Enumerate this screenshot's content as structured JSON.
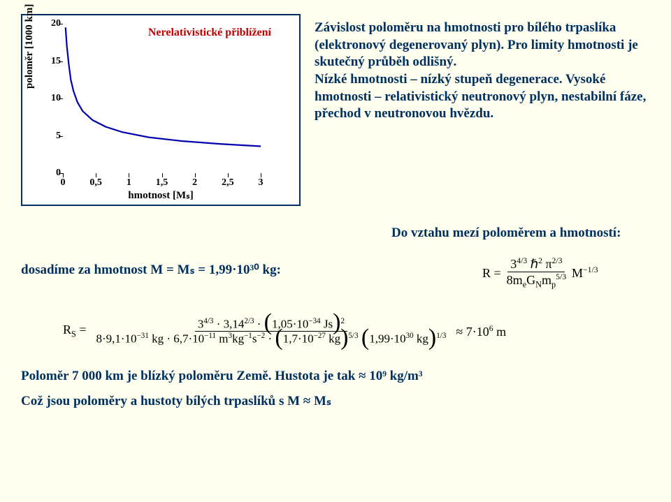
{
  "chart": {
    "type": "line",
    "legend_label": "Nerelativistické přiblížení",
    "legend_color": "#c00000",
    "line_color": "#0000b0",
    "line_width": 2.2,
    "background_color": "#ffffff",
    "border_color": "#003060",
    "xlabel": "hmotnost [Mₛ]",
    "ylabel": "poloměr [1000 km]",
    "tick_color": "#000000",
    "tick_fontsize": 14,
    "label_fontsize": 15,
    "xlim": [
      0,
      3
    ],
    "ylim": [
      0,
      20
    ],
    "xticks": [
      0,
      0.5,
      1,
      1.5,
      2,
      2.5,
      3
    ],
    "xtick_labels": [
      "0",
      "0,5",
      "1",
      "1,5",
      "2",
      "2,5",
      "3"
    ],
    "yticks": [
      0,
      5,
      10,
      15,
      20
    ],
    "ytick_labels": [
      "0",
      "5",
      "10",
      "15",
      "20"
    ],
    "x": [
      0.04,
      0.06,
      0.09,
      0.12,
      0.16,
      0.22,
      0.3,
      0.45,
      0.65,
      0.9,
      1.3,
      1.8,
      2.4,
      3.0
    ],
    "y": [
      19.5,
      17.0,
      14.5,
      12.5,
      11.0,
      9.5,
      8.3,
      7.1,
      6.2,
      5.5,
      4.8,
      4.3,
      3.9,
      3.6
    ]
  },
  "text": {
    "explain_1": "Závislost poloměru na hmotnosti pro bílého trpaslíka (elektronový degenerovaný plyn). Pro limity hmotnosti je skutečný průběh odlišný.",
    "explain_2": "Nízké hmotnosti – nízký stupeň degenerace. Vysoké hmotnosti – relativistický neutronový plyn, nestabilní fáze, přechod v neutronovou hvězdu.",
    "mid_right": "Do vztahu mezí poloměrem a hmotností:",
    "mid_left": "dosadíme za hmotnost M = Mₛ = 1,99·10³⁰ kg:",
    "bottom_1": "Poloměr 7 000 km je blízký poloměru Země. Hustota je tak ≈ 10⁹ kg/m³",
    "bottom_2": "Což jsou poloměry a hustoty bílých trpaslíků s M ≈ Mₛ"
  },
  "formula_R": {
    "lhs": "R =",
    "numerator_tex": "3^{4/3} ℏ^{2} π^{2/3}",
    "denominator_tex": "8 m_e G_N m_p^{5/3}",
    "tail": "M^{-1/3}"
  },
  "calc": {
    "lhs": "Rₛ =",
    "num_part1": "3^{4/3} · 3,14^{2/3} ·",
    "num_paren": "1,05·10⁻³⁴ Js",
    "num_paren_exp": "2",
    "den_part1": "8·9,1·10⁻³¹ kg · 6,7·10⁻¹¹ m³kg⁻¹s⁻² ·",
    "den_paren1": "1,7·10⁻²⁷ kg",
    "den_paren1_exp": "5/3",
    "mul_paren2": "1,99·10³⁰ kg",
    "mul_paren2_exp": "1/3",
    "result": "≈ 7·10⁶ m"
  },
  "colors": {
    "page_bg": "#fffff0",
    "heading_blue": "#003060",
    "text_black": "#000000"
  }
}
